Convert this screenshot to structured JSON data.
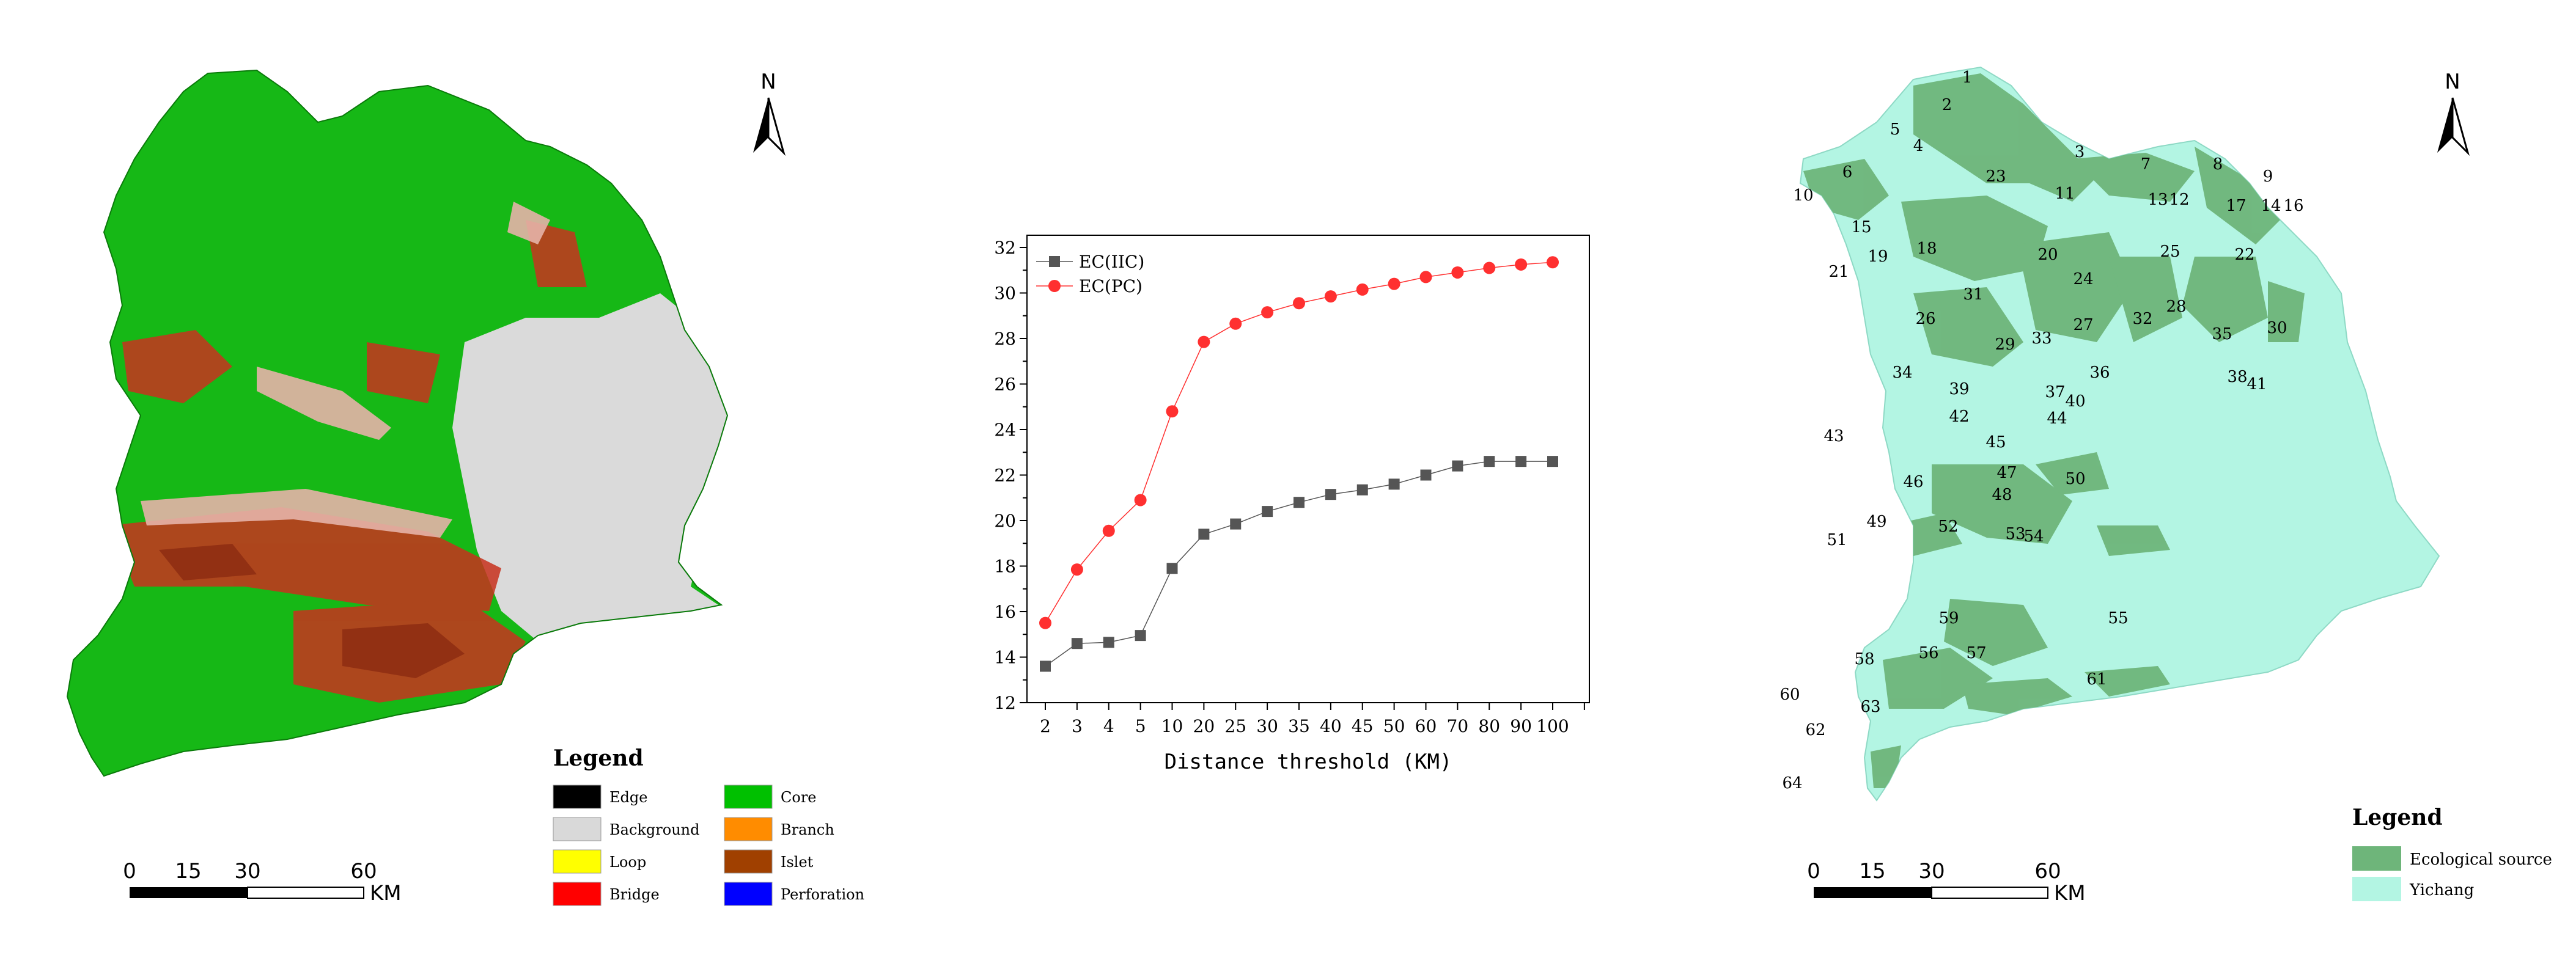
{
  "morphology_map": {
    "north_label": "N",
    "legend": {
      "title": "Legend",
      "items": [
        {
          "label": "Edge",
          "color": "#000000"
        },
        {
          "label": "Core",
          "color": "#00c000"
        },
        {
          "label": "Background",
          "color": "#d9d9d9"
        },
        {
          "label": "Branch",
          "color": "#ff8c00"
        },
        {
          "label": "Loop",
          "color": "#ffff00"
        },
        {
          "label": "Islet",
          "color": "#a04000"
        },
        {
          "label": "Bridge",
          "color": "#ff0000"
        },
        {
          "label": "Perforation",
          "color": "#0000ff"
        }
      ]
    },
    "scale_bar": {
      "ticks": [
        "0",
        "15",
        "30",
        "60"
      ],
      "unit": "KM"
    }
  },
  "chart_data": {
    "type": "line",
    "categories": [
      "2",
      "3",
      "4",
      "5",
      "10",
      "20",
      "25",
      "30",
      "35",
      "40",
      "45",
      "50",
      "60",
      "70",
      "80",
      "90",
      "100"
    ],
    "series": [
      {
        "name": "EC(IIC)",
        "color": "#555555",
        "marker": "square",
        "values": [
          13.6,
          14.6,
          14.65,
          14.95,
          17.9,
          19.4,
          19.85,
          20.4,
          20.8,
          21.15,
          21.35,
          21.6,
          22.0,
          22.4,
          22.6,
          22.6,
          22.6
        ]
      },
      {
        "name": "EC(PC)",
        "color": "#ff3030",
        "marker": "circle",
        "values": [
          15.5,
          17.85,
          19.55,
          20.9,
          24.8,
          27.85,
          28.65,
          29.15,
          29.55,
          29.85,
          30.15,
          30.4,
          30.7,
          30.9,
          31.1,
          31.25,
          31.35
        ]
      }
    ],
    "xlabel": "Distance threshold (KM)",
    "ylabel": "",
    "ylim": [
      12,
      32
    ],
    "yticks": [
      "12",
      "14",
      "16",
      "18",
      "20",
      "22",
      "24",
      "26",
      "28",
      "30",
      "32"
    ],
    "legend_position": "top-left",
    "grid": false
  },
  "source_map": {
    "north_label": "N",
    "patch_ids": [
      "1",
      "2",
      "3",
      "4",
      "5",
      "6",
      "7",
      "8",
      "9",
      "10",
      "11",
      "12",
      "13",
      "14",
      "15",
      "16",
      "17",
      "18",
      "19",
      "20",
      "21",
      "22",
      "23",
      "24",
      "25",
      "26",
      "27",
      "28",
      "29",
      "30",
      "31",
      "32",
      "33",
      "34",
      "35",
      "36",
      "37",
      "38",
      "39",
      "40",
      "41",
      "42",
      "43",
      "44",
      "45",
      "46",
      "47",
      "48",
      "49",
      "50",
      "51",
      "52",
      "53",
      "54",
      "55",
      "56",
      "57",
      "58",
      "59",
      "60",
      "61",
      "62",
      "63",
      "64"
    ],
    "legend": {
      "title": "Legend",
      "items": [
        {
          "label": "Ecological source",
          "color": "#6eb57a"
        },
        {
          "label": "Yichang",
          "color": "#b3f5e3"
        }
      ]
    },
    "scale_bar": {
      "ticks": [
        "0",
        "15",
        "30",
        "60"
      ],
      "unit": "KM"
    }
  }
}
